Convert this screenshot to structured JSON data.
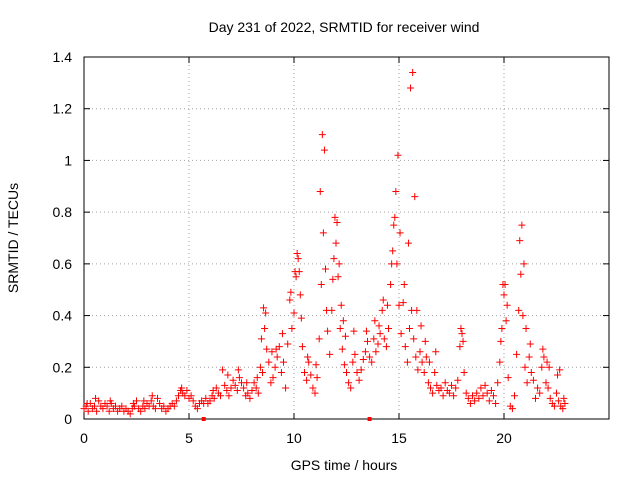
{
  "chart_data": {
    "type": "scatter",
    "title": "Day 231 of 2022, SRMTID for receiver wind",
    "xlabel": "GPS time / hours",
    "ylabel": "SRMTID / TECUs",
    "xlim": [
      0,
      25
    ],
    "ylim": [
      0,
      1.4
    ],
    "xticks": [
      0,
      5,
      10,
      15,
      20
    ],
    "xtick_labels": [
      "0",
      "5",
      "10",
      "15",
      "20"
    ],
    "yticks": [
      0,
      0.2,
      0.4,
      0.6,
      0.8,
      1,
      1.2,
      1.4
    ],
    "ytick_labels": [
      "0",
      "0.2",
      "0.4",
      "0.6",
      "0.8",
      "1",
      "1.2",
      "1.4"
    ],
    "grid": true,
    "marker": "+",
    "series_color": "#ff0000",
    "gap_markers_x": [
      5.7,
      13.6
    ],
    "series": [
      {
        "name": "SRMTID",
        "points": [
          [
            0.0,
            0.04
          ],
          [
            0.1,
            0.05
          ],
          [
            0.2,
            0.03
          ],
          [
            0.3,
            0.06
          ],
          [
            0.4,
            0.04
          ],
          [
            0.5,
            0.05
          ],
          [
            0.6,
            0.03
          ],
          [
            0.7,
            0.07
          ],
          [
            0.8,
            0.05
          ],
          [
            0.9,
            0.04
          ],
          [
            1.0,
            0.06
          ],
          [
            1.1,
            0.05
          ],
          [
            1.2,
            0.03
          ],
          [
            1.3,
            0.06
          ],
          [
            1.4,
            0.04
          ],
          [
            1.5,
            0.05
          ],
          [
            1.6,
            0.03
          ],
          [
            1.7,
            0.04
          ],
          [
            1.8,
            0.05
          ],
          [
            1.9,
            0.03
          ],
          [
            2.0,
            0.04
          ],
          [
            2.1,
            0.03
          ],
          [
            2.2,
            0.02
          ],
          [
            2.3,
            0.04
          ],
          [
            2.4,
            0.05
          ],
          [
            2.5,
            0.07
          ],
          [
            2.6,
            0.04
          ],
          [
            2.7,
            0.03
          ],
          [
            2.8,
            0.05
          ],
          [
            2.9,
            0.04
          ],
          [
            3.0,
            0.06
          ],
          [
            3.1,
            0.05
          ],
          [
            3.2,
            0.07
          ],
          [
            3.3,
            0.05
          ],
          [
            3.4,
            0.04
          ],
          [
            3.5,
            0.08
          ],
          [
            3.6,
            0.06
          ],
          [
            3.7,
            0.04
          ],
          [
            3.8,
            0.05
          ],
          [
            3.9,
            0.03
          ],
          [
            4.0,
            0.04
          ],
          [
            4.1,
            0.05
          ],
          [
            4.2,
            0.06
          ],
          [
            4.3,
            0.05
          ],
          [
            4.4,
            0.07
          ],
          [
            4.5,
            0.09
          ],
          [
            4.6,
            0.11
          ],
          [
            4.7,
            0.1
          ],
          [
            4.8,
            0.09
          ],
          [
            4.9,
            0.11
          ],
          [
            5.0,
            0.08
          ],
          [
            5.1,
            0.09
          ],
          [
            5.2,
            0.07
          ],
          [
            5.3,
            0.05
          ],
          [
            5.4,
            0.04
          ],
          [
            5.5,
            0.06
          ],
          [
            5.6,
            0.07
          ],
          [
            5.7,
            0.06
          ],
          [
            5.8,
            0.08
          ],
          [
            5.9,
            0.06
          ],
          [
            6.0,
            0.07
          ],
          [
            6.1,
            0.09
          ],
          [
            6.2,
            0.08
          ],
          [
            6.3,
            0.12
          ],
          [
            6.4,
            0.1
          ],
          [
            6.5,
            0.09
          ],
          [
            6.6,
            0.19
          ],
          [
            6.7,
            0.13
          ],
          [
            6.8,
            0.11
          ],
          [
            6.9,
            0.09
          ],
          [
            7.0,
            0.12
          ],
          [
            7.1,
            0.15
          ],
          [
            7.2,
            0.13
          ],
          [
            7.3,
            0.11
          ],
          [
            7.4,
            0.16
          ],
          [
            7.5,
            0.14
          ],
          [
            7.6,
            0.12
          ],
          [
            7.7,
            0.09
          ],
          [
            7.8,
            0.1
          ],
          [
            7.9,
            0.08
          ],
          [
            8.0,
            0.11
          ],
          [
            8.1,
            0.14
          ],
          [
            8.2,
            0.12
          ],
          [
            8.3,
            0.1
          ],
          [
            8.4,
            0.2
          ],
          [
            8.5,
            0.18
          ],
          [
            8.6,
            0.35
          ],
          [
            8.7,
            0.27
          ],
          [
            8.8,
            0.22
          ],
          [
            8.9,
            0.14
          ],
          [
            9.0,
            0.16
          ],
          [
            9.1,
            0.2
          ],
          [
            9.2,
            0.24
          ],
          [
            9.3,
            0.28
          ],
          [
            9.4,
            0.18
          ],
          [
            9.5,
            0.22
          ],
          [
            9.6,
            0.12
          ],
          [
            9.7,
            0.29
          ],
          [
            9.8,
            0.46
          ],
          [
            9.9,
            0.35
          ],
          [
            10.0,
            0.41
          ],
          [
            10.1,
            0.55
          ],
          [
            10.2,
            0.62
          ],
          [
            10.3,
            0.48
          ],
          [
            10.4,
            0.28
          ],
          [
            10.5,
            0.18
          ],
          [
            10.6,
            0.15
          ],
          [
            10.7,
            0.22
          ],
          [
            10.8,
            0.17
          ],
          [
            10.9,
            0.12
          ],
          [
            11.0,
            0.1
          ],
          [
            11.1,
            0.16
          ],
          [
            11.2,
            0.31
          ],
          [
            11.3,
            0.52
          ],
          [
            11.4,
            0.72
          ],
          [
            11.5,
            0.58
          ],
          [
            11.6,
            0.34
          ],
          [
            11.7,
            0.25
          ],
          [
            11.8,
            0.42
          ],
          [
            11.9,
            0.62
          ],
          [
            12.0,
            0.68
          ],
          [
            12.1,
            0.55
          ],
          [
            12.2,
            0.35
          ],
          [
            12.3,
            0.27
          ],
          [
            12.4,
            0.21
          ],
          [
            12.5,
            0.18
          ],
          [
            12.6,
            0.14
          ],
          [
            12.7,
            0.12
          ],
          [
            12.8,
            0.22
          ],
          [
            12.9,
            0.25
          ],
          [
            13.0,
            0.18
          ],
          [
            13.1,
            0.15
          ],
          [
            13.2,
            0.19
          ],
          [
            13.3,
            0.23
          ],
          [
            13.4,
            0.26
          ],
          [
            13.5,
            0.3
          ],
          [
            13.6,
            0.24
          ],
          [
            13.7,
            0.22
          ],
          [
            13.8,
            0.31
          ],
          [
            13.9,
            0.26
          ],
          [
            14.0,
            0.29
          ],
          [
            14.1,
            0.33
          ],
          [
            14.2,
            0.42
          ],
          [
            14.3,
            0.31
          ],
          [
            14.4,
            0.28
          ],
          [
            14.5,
            0.35
          ],
          [
            14.6,
            0.52
          ],
          [
            14.7,
            0.65
          ],
          [
            14.8,
            0.78
          ],
          [
            14.9,
            0.6
          ],
          [
            15.0,
            0.44
          ],
          [
            15.1,
            0.33
          ],
          [
            15.2,
            0.45
          ],
          [
            15.3,
            0.28
          ],
          [
            15.4,
            0.22
          ],
          [
            15.5,
            0.35
          ],
          [
            15.6,
            0.42
          ],
          [
            15.7,
            0.31
          ],
          [
            15.8,
            0.24
          ],
          [
            15.9,
            0.19
          ],
          [
            16.0,
            0.26
          ],
          [
            16.1,
            0.22
          ],
          [
            16.2,
            0.18
          ],
          [
            16.3,
            0.24
          ],
          [
            16.4,
            0.14
          ],
          [
            16.5,
            0.12
          ],
          [
            16.6,
            0.1
          ],
          [
            16.7,
            0.18
          ],
          [
            16.8,
            0.13
          ],
          [
            16.9,
            0.11
          ],
          [
            17.0,
            0.12
          ],
          [
            17.1,
            0.09
          ],
          [
            17.2,
            0.14
          ],
          [
            17.3,
            0.11
          ],
          [
            17.4,
            0.1
          ],
          [
            17.5,
            0.13
          ],
          [
            17.6,
            0.09
          ],
          [
            17.7,
            0.12
          ],
          [
            17.8,
            0.15
          ],
          [
            17.9,
            0.28
          ],
          [
            18.0,
            0.33
          ],
          [
            18.1,
            0.18
          ],
          [
            18.2,
            0.1
          ],
          [
            18.3,
            0.08
          ],
          [
            18.4,
            0.06
          ],
          [
            18.5,
            0.09
          ],
          [
            18.6,
            0.07
          ],
          [
            18.7,
            0.1
          ],
          [
            18.8,
            0.08
          ],
          [
            18.9,
            0.12
          ],
          [
            19.0,
            0.09
          ],
          [
            19.1,
            0.13
          ],
          [
            19.2,
            0.1
          ],
          [
            19.3,
            0.07
          ],
          [
            19.4,
            0.11
          ],
          [
            19.5,
            0.09
          ],
          [
            19.6,
            0.06
          ],
          [
            19.7,
            0.14
          ],
          [
            19.8,
            0.22
          ],
          [
            19.9,
            0.35
          ],
          [
            20.0,
            0.48
          ],
          [
            20.1,
            0.38
          ],
          [
            20.2,
            0.16
          ],
          [
            20.3,
            0.05
          ],
          [
            20.4,
            0.04
          ],
          [
            20.5,
            0.09
          ],
          [
            20.6,
            0.25
          ],
          [
            20.7,
            0.42
          ],
          [
            20.8,
            0.56
          ],
          [
            20.9,
            0.4
          ],
          [
            21.0,
            0.2
          ],
          [
            21.1,
            0.14
          ],
          [
            21.2,
            0.24
          ],
          [
            21.3,
            0.18
          ],
          [
            21.4,
            0.15
          ],
          [
            21.5,
            0.08
          ],
          [
            21.6,
            0.12
          ],
          [
            21.7,
            0.1
          ],
          [
            21.8,
            0.2
          ],
          [
            21.9,
            0.24
          ],
          [
            22.0,
            0.14
          ],
          [
            22.1,
            0.12
          ],
          [
            22.2,
            0.08
          ],
          [
            22.3,
            0.06
          ],
          [
            22.4,
            0.05
          ],
          [
            22.5,
            0.1
          ],
          [
            22.6,
            0.07
          ],
          [
            22.7,
            0.05
          ],
          [
            22.8,
            0.04
          ],
          [
            22.9,
            0.06
          ],
          [
            0.15,
            0.06
          ],
          [
            0.55,
            0.08
          ],
          [
            1.25,
            0.07
          ],
          [
            2.35,
            0.06
          ],
          [
            2.85,
            0.07
          ],
          [
            3.25,
            0.09
          ],
          [
            4.65,
            0.12
          ],
          [
            6.15,
            0.11
          ],
          [
            6.85,
            0.17
          ],
          [
            7.35,
            0.19
          ],
          [
            7.75,
            0.14
          ],
          [
            8.25,
            0.16
          ],
          [
            8.45,
            0.31
          ],
          [
            8.55,
            0.43
          ],
          [
            8.65,
            0.41
          ],
          [
            8.95,
            0.26
          ],
          [
            9.15,
            0.27
          ],
          [
            9.45,
            0.33
          ],
          [
            9.85,
            0.49
          ],
          [
            10.05,
            0.57
          ],
          [
            10.15,
            0.64
          ],
          [
            10.25,
            0.57
          ],
          [
            10.35,
            0.39
          ],
          [
            10.65,
            0.24
          ],
          [
            11.05,
            0.21
          ],
          [
            11.25,
            0.88
          ],
          [
            11.35,
            1.1
          ],
          [
            11.45,
            1.04
          ],
          [
            11.55,
            0.42
          ],
          [
            11.85,
            0.54
          ],
          [
            11.95,
            0.78
          ],
          [
            12.05,
            0.76
          ],
          [
            12.15,
            0.6
          ],
          [
            12.25,
            0.44
          ],
          [
            12.35,
            0.38
          ],
          [
            12.45,
            0.32
          ],
          [
            12.85,
            0.34
          ],
          [
            13.45,
            0.34
          ],
          [
            13.85,
            0.38
          ],
          [
            14.05,
            0.36
          ],
          [
            14.25,
            0.46
          ],
          [
            14.45,
            0.44
          ],
          [
            14.65,
            0.6
          ],
          [
            14.75,
            0.75
          ],
          [
            14.85,
            0.88
          ],
          [
            14.95,
            1.02
          ],
          [
            15.05,
            0.72
          ],
          [
            15.25,
            0.52
          ],
          [
            15.45,
            0.68
          ],
          [
            15.55,
            1.28
          ],
          [
            15.65,
            1.34
          ],
          [
            15.75,
            0.86
          ],
          [
            15.85,
            0.42
          ],
          [
            16.05,
            0.36
          ],
          [
            16.25,
            0.3
          ],
          [
            16.45,
            0.22
          ],
          [
            16.75,
            0.26
          ],
          [
            17.95,
            0.35
          ],
          [
            18.05,
            0.3
          ],
          [
            19.85,
            0.3
          ],
          [
            19.95,
            0.52
          ],
          [
            20.05,
            0.52
          ],
          [
            20.15,
            0.44
          ],
          [
            20.75,
            0.69
          ],
          [
            20.85,
            0.75
          ],
          [
            20.95,
            0.6
          ],
          [
            21.05,
            0.35
          ],
          [
            21.25,
            0.29
          ],
          [
            21.85,
            0.27
          ],
          [
            22.05,
            0.22
          ],
          [
            22.15,
            0.2
          ],
          [
            22.55,
            0.17
          ],
          [
            22.65,
            0.19
          ],
          [
            22.85,
            0.08
          ]
        ]
      }
    ]
  }
}
